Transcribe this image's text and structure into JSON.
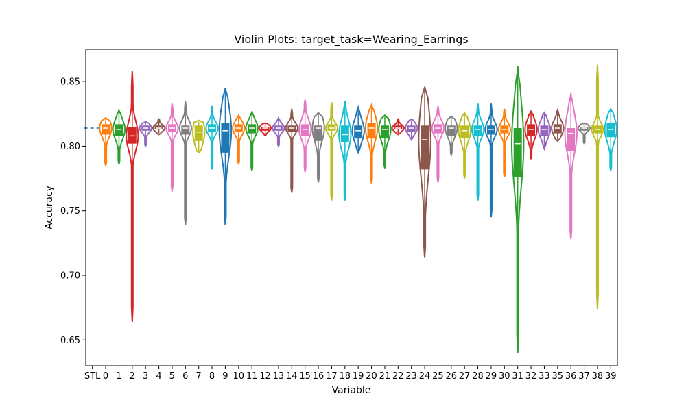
{
  "chart_data": {
    "type": "violin",
    "title": "Violin Plots: target_task=Wearing_Earrings",
    "xlabel": "Variable",
    "ylabel": "Accuracy",
    "ylim": [
      0.63,
      0.875
    ],
    "yticks": [
      "0.65",
      "0.70",
      "0.75",
      "0.80",
      "0.85"
    ],
    "reference_line": {
      "label": "STL",
      "value": 0.814
    },
    "categories": [
      "STL",
      "0",
      "1",
      "2",
      "3",
      "4",
      "5",
      "6",
      "7",
      "8",
      "9",
      "10",
      "11",
      "12",
      "13",
      "14",
      "15",
      "16",
      "17",
      "18",
      "19",
      "20",
      "21",
      "22",
      "23",
      "24",
      "25",
      "26",
      "27",
      "28",
      "29",
      "30",
      "31",
      "32",
      "33",
      "35",
      "36",
      "37",
      "38",
      "39"
    ],
    "series": [
      {
        "category": "0",
        "min": 0.785,
        "max": 0.822,
        "q1": 0.809,
        "median": 0.814,
        "q3": 0.817,
        "color": "#ff7f0e"
      },
      {
        "category": "1",
        "min": 0.786,
        "max": 0.828,
        "q1": 0.808,
        "median": 0.813,
        "q3": 0.817,
        "color": "#2ca02c"
      },
      {
        "category": "2",
        "min": 0.664,
        "max": 0.858,
        "q1": 0.802,
        "median": 0.808,
        "q3": 0.815,
        "color": "#d62728"
      },
      {
        "category": "3",
        "min": 0.8,
        "max": 0.819,
        "q1": 0.812,
        "median": 0.814,
        "q3": 0.816,
        "color": "#9467bd"
      },
      {
        "category": "4",
        "min": 0.809,
        "max": 0.821,
        "q1": 0.813,
        "median": 0.814,
        "q3": 0.816,
        "color": "#8c564b"
      },
      {
        "category": "5",
        "min": 0.765,
        "max": 0.833,
        "q1": 0.811,
        "median": 0.814,
        "q3": 0.817,
        "color": "#e377c2"
      },
      {
        "category": "6",
        "min": 0.739,
        "max": 0.835,
        "q1": 0.809,
        "median": 0.814,
        "q3": 0.816,
        "color": "#7f7f7f"
      },
      {
        "category": "7",
        "min": 0.795,
        "max": 0.82,
        "q1": 0.804,
        "median": 0.811,
        "q3": 0.816,
        "color": "#bcbd22"
      },
      {
        "category": "8",
        "min": 0.782,
        "max": 0.831,
        "q1": 0.811,
        "median": 0.814,
        "q3": 0.817,
        "color": "#17becf"
      },
      {
        "category": "9",
        "min": 0.739,
        "max": 0.845,
        "q1": 0.795,
        "median": 0.812,
        "q3": 0.818,
        "color": "#1f77b4"
      },
      {
        "category": "10",
        "min": 0.786,
        "max": 0.824,
        "q1": 0.811,
        "median": 0.814,
        "q3": 0.817,
        "color": "#ff7f0e"
      },
      {
        "category": "11",
        "min": 0.781,
        "max": 0.827,
        "q1": 0.81,
        "median": 0.814,
        "q3": 0.817,
        "color": "#2ca02c"
      },
      {
        "category": "12",
        "min": 0.808,
        "max": 0.818,
        "q1": 0.812,
        "median": 0.814,
        "q3": 0.815,
        "color": "#d62728"
      },
      {
        "category": "13",
        "min": 0.8,
        "max": 0.822,
        "q1": 0.812,
        "median": 0.814,
        "q3": 0.816,
        "color": "#9467bd"
      },
      {
        "category": "14",
        "min": 0.764,
        "max": 0.829,
        "q1": 0.811,
        "median": 0.814,
        "q3": 0.816,
        "color": "#8c564b"
      },
      {
        "category": "15",
        "min": 0.78,
        "max": 0.836,
        "q1": 0.808,
        "median": 0.813,
        "q3": 0.817,
        "color": "#e377c2"
      },
      {
        "category": "16",
        "min": 0.772,
        "max": 0.826,
        "q1": 0.804,
        "median": 0.814,
        "q3": 0.816,
        "color": "#7f7f7f"
      },
      {
        "category": "17",
        "min": 0.758,
        "max": 0.834,
        "q1": 0.812,
        "median": 0.814,
        "q3": 0.817,
        "color": "#bcbd22"
      },
      {
        "category": "18",
        "min": 0.758,
        "max": 0.835,
        "q1": 0.803,
        "median": 0.809,
        "q3": 0.816,
        "color": "#17becf"
      },
      {
        "category": "19",
        "min": 0.795,
        "max": 0.83,
        "q1": 0.806,
        "median": 0.812,
        "q3": 0.816,
        "color": "#1f77b4"
      },
      {
        "category": "20",
        "min": 0.771,
        "max": 0.832,
        "q1": 0.806,
        "median": 0.814,
        "q3": 0.818,
        "color": "#ff7f0e"
      },
      {
        "category": "21",
        "min": 0.783,
        "max": 0.824,
        "q1": 0.806,
        "median": 0.813,
        "q3": 0.816,
        "color": "#2ca02c"
      },
      {
        "category": "22",
        "min": 0.809,
        "max": 0.821,
        "q1": 0.813,
        "median": 0.814,
        "q3": 0.816,
        "color": "#d62728"
      },
      {
        "category": "23",
        "min": 0.805,
        "max": 0.821,
        "q1": 0.811,
        "median": 0.814,
        "q3": 0.816,
        "color": "#9467bd"
      },
      {
        "category": "24",
        "min": 0.714,
        "max": 0.846,
        "q1": 0.782,
        "median": 0.805,
        "q3": 0.816,
        "color": "#8c564b"
      },
      {
        "category": "25",
        "min": 0.772,
        "max": 0.831,
        "q1": 0.81,
        "median": 0.814,
        "q3": 0.817,
        "color": "#e377c2"
      },
      {
        "category": "26",
        "min": 0.793,
        "max": 0.823,
        "q1": 0.808,
        "median": 0.814,
        "q3": 0.816,
        "color": "#7f7f7f"
      },
      {
        "category": "27",
        "min": 0.775,
        "max": 0.826,
        "q1": 0.806,
        "median": 0.812,
        "q3": 0.816,
        "color": "#bcbd22"
      },
      {
        "category": "28",
        "min": 0.758,
        "max": 0.833,
        "q1": 0.808,
        "median": 0.813,
        "q3": 0.816,
        "color": "#17becf"
      },
      {
        "category": "29",
        "min": 0.745,
        "max": 0.833,
        "q1": 0.809,
        "median": 0.813,
        "q3": 0.816,
        "color": "#1f77b4"
      },
      {
        "category": "30",
        "min": 0.776,
        "max": 0.829,
        "q1": 0.81,
        "median": 0.813,
        "q3": 0.816,
        "color": "#ff7f0e"
      },
      {
        "category": "31",
        "min": 0.64,
        "max": 0.862,
        "q1": 0.776,
        "median": 0.802,
        "q3": 0.814,
        "color": "#2ca02c"
      },
      {
        "category": "32",
        "min": 0.79,
        "max": 0.827,
        "q1": 0.808,
        "median": 0.813,
        "q3": 0.817,
        "color": "#d62728"
      },
      {
        "category": "33",
        "min": 0.798,
        "max": 0.826,
        "q1": 0.808,
        "median": 0.813,
        "q3": 0.816,
        "color": "#9467bd"
      },
      {
        "category": "35",
        "min": 0.804,
        "max": 0.828,
        "q1": 0.81,
        "median": 0.814,
        "q3": 0.817,
        "color": "#8c564b"
      },
      {
        "category": "36",
        "min": 0.728,
        "max": 0.841,
        "q1": 0.796,
        "median": 0.81,
        "q3": 0.814,
        "color": "#e377c2"
      },
      {
        "category": "37",
        "min": 0.802,
        "max": 0.818,
        "q1": 0.812,
        "median": 0.814,
        "q3": 0.815,
        "color": "#7f7f7f"
      },
      {
        "category": "38",
        "min": 0.674,
        "max": 0.863,
        "q1": 0.81,
        "median": 0.813,
        "q3": 0.816,
        "color": "#bcbd22"
      },
      {
        "category": "39",
        "min": 0.781,
        "max": 0.829,
        "q1": 0.807,
        "median": 0.813,
        "q3": 0.818,
        "color": "#17becf"
      }
    ]
  }
}
